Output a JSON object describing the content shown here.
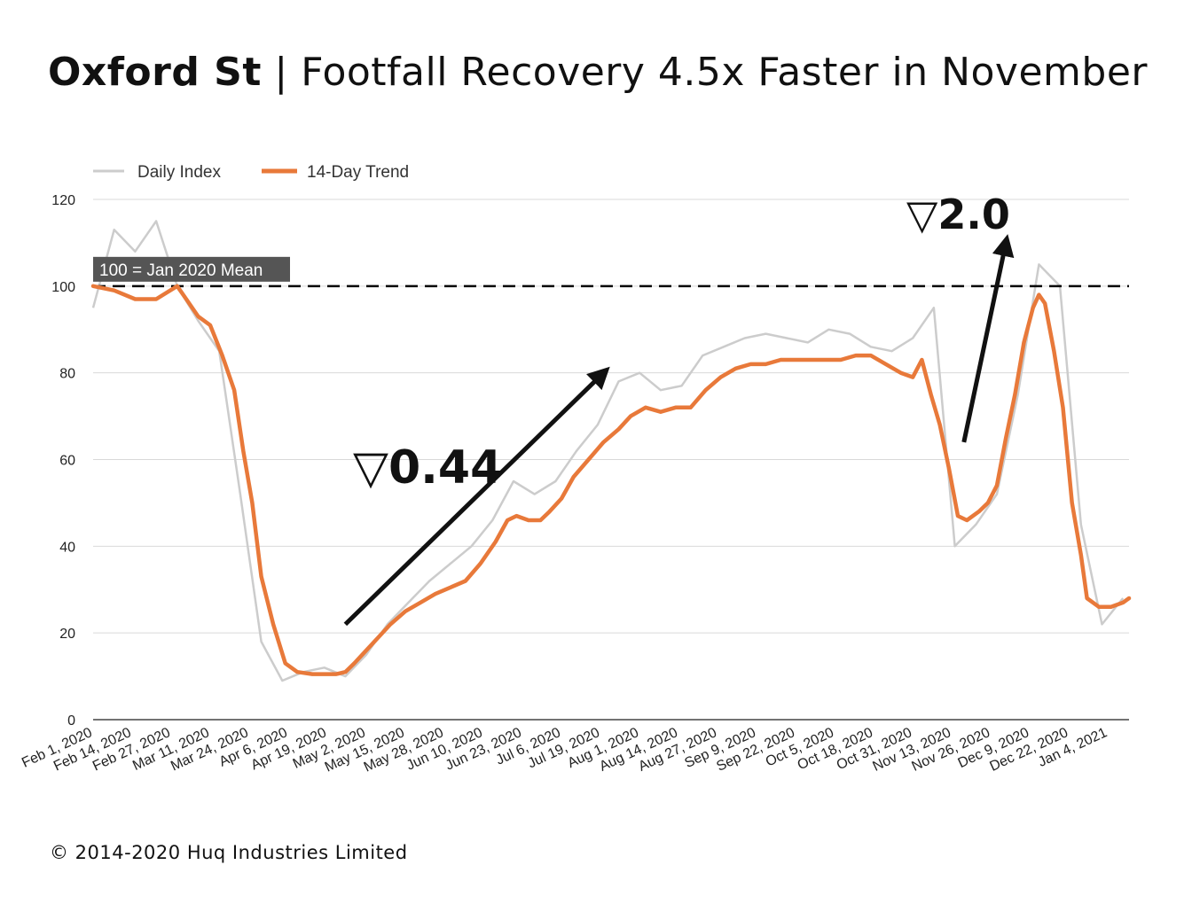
{
  "title_bold": "Oxford St",
  "title_rest": " | Footfall Recovery 4.5x Faster in November",
  "footer": "© 2014-2020 Huq Industries Limited",
  "colors": {
    "daily": "#cccccc",
    "trend": "#e8793a",
    "grid": "#d9d9d9",
    "reference": "#000000",
    "ref_label_bg": "#555555"
  },
  "chart_data": {
    "type": "line",
    "title": "Oxford St | Footfall Recovery 4.5x Faster in November",
    "xlabel": "",
    "ylabel": "",
    "ylim": [
      0,
      120
    ],
    "yticks": [
      0,
      20,
      40,
      60,
      80,
      100,
      120
    ],
    "legend": {
      "position": "top-left",
      "entries": [
        "Daily Index",
        "14-Day Trend"
      ]
    },
    "grid": true,
    "x_start": "Feb 1, 2020",
    "x_end": "Jan 11, 2021",
    "x_tick_labels": [
      "Feb 1, 2020",
      "Feb 14, 2020",
      "Feb 27, 2020",
      "Mar 11, 2020",
      "Mar 24, 2020",
      "Apr 6, 2020",
      "Apr 19, 2020",
      "May 2, 2020",
      "May 15, 2020",
      "May 28, 2020",
      "Jun 10, 2020",
      "Jun 23, 2020",
      "Jul 6, 2020",
      "Jul 19, 2020",
      "Aug 1, 2020",
      "Aug 14, 2020",
      "Aug 27, 2020",
      "Sep 9, 2020",
      "Sep 22, 2020",
      "Oct 5, 2020",
      "Oct 18, 2020",
      "Oct 31, 2020",
      "Nov 13, 2020",
      "Nov 26, 2020",
      "Dec 9, 2020",
      "Dec 22, 2020",
      "Jan 4, 2021"
    ],
    "reference_line": {
      "value": 100,
      "label": "100 = Jan 2020 Mean"
    },
    "annotations": [
      {
        "text": "▽0.44",
        "from": [
          "Apr 25, 2020",
          22
        ],
        "to": [
          "Jul 20, 2020",
          80
        ]
      },
      {
        "text": "▽2.0",
        "from": [
          "Nov 17, 2020",
          64
        ],
        "to": [
          "Dec 1, 2020",
          110
        ]
      }
    ],
    "series": [
      {
        "name": "Daily Index",
        "x": [
          "Feb 1, 2020",
          "Feb 8, 2020",
          "Feb 15, 2020",
          "Feb 22, 2020",
          "Feb 29, 2020",
          "Mar 7, 2020",
          "Mar 14, 2020",
          "Mar 21, 2020",
          "Mar 28, 2020",
          "Apr 4, 2020",
          "Apr 11, 2020",
          "Apr 18, 2020",
          "Apr 25, 2020",
          "May 2, 2020",
          "May 9, 2020",
          "May 16, 2020",
          "May 23, 2020",
          "May 30, 2020",
          "Jun 6, 2020",
          "Jun 13, 2020",
          "Jun 20, 2020",
          "Jun 27, 2020",
          "Jul 4, 2020",
          "Jul 11, 2020",
          "Jul 18, 2020",
          "Jul 25, 2020",
          "Aug 1, 2020",
          "Aug 8, 2020",
          "Aug 15, 2020",
          "Aug 22, 2020",
          "Aug 29, 2020",
          "Sep 5, 2020",
          "Sep 12, 2020",
          "Sep 19, 2020",
          "Sep 26, 2020",
          "Oct 3, 2020",
          "Oct 10, 2020",
          "Oct 17, 2020",
          "Oct 24, 2020",
          "Oct 31, 2020",
          "Nov 7, 2020",
          "Nov 14, 2020",
          "Nov 21, 2020",
          "Nov 28, 2020",
          "Dec 5, 2020",
          "Dec 12, 2020",
          "Dec 19, 2020",
          "Dec 26, 2020",
          "Jan 2, 2021",
          "Jan 9, 2021"
        ],
        "values": [
          95,
          113,
          108,
          115,
          100,
          92,
          85,
          52,
          18,
          9,
          11,
          12,
          10,
          15,
          22,
          27,
          32,
          36,
          40,
          46,
          55,
          52,
          55,
          62,
          68,
          78,
          80,
          76,
          77,
          84,
          86,
          88,
          89,
          88,
          87,
          90,
          89,
          86,
          85,
          88,
          95,
          40,
          45,
          52,
          75,
          105,
          100,
          45,
          22,
          28
        ]
      },
      {
        "name": "14-Day Trend",
        "x": [
          "Feb 1, 2020",
          "Feb 8, 2020",
          "Feb 15, 2020",
          "Feb 22, 2020",
          "Feb 29, 2020",
          "Mar 3, 2020",
          "Mar 7, 2020",
          "Mar 11, 2020",
          "Mar 15, 2020",
          "Mar 19, 2020",
          "Mar 22, 2020",
          "Mar 25, 2020",
          "Mar 28, 2020",
          "Apr 1, 2020",
          "Apr 5, 2020",
          "Apr 9, 2020",
          "Apr 14, 2020",
          "Apr 19, 2020",
          "Apr 22, 2020",
          "Apr 25, 2020",
          "Apr 28, 2020",
          "May 2, 2020",
          "May 6, 2020",
          "May 10, 2020",
          "May 15, 2020",
          "May 20, 2020",
          "May 25, 2020",
          "May 30, 2020",
          "Jun 4, 2020",
          "Jun 9, 2020",
          "Jun 14, 2020",
          "Jun 18, 2020",
          "Jun 21, 2020",
          "Jun 25, 2020",
          "Jun 29, 2020",
          "Jul 2, 2020",
          "Jul 6, 2020",
          "Jul 10, 2020",
          "Jul 15, 2020",
          "Jul 20, 2020",
          "Jul 25, 2020",
          "Jul 29, 2020",
          "Aug 3, 2020",
          "Aug 8, 2020",
          "Aug 13, 2020",
          "Aug 18, 2020",
          "Aug 23, 2020",
          "Aug 28, 2020",
          "Sep 2, 2020",
          "Sep 7, 2020",
          "Sep 12, 2020",
          "Sep 17, 2020",
          "Sep 22, 2020",
          "Sep 27, 2020",
          "Oct 2, 2020",
          "Oct 7, 2020",
          "Oct 12, 2020",
          "Oct 17, 2020",
          "Oct 22, 2020",
          "Oct 27, 2020",
          "Oct 31, 2020",
          "Nov 3, 2020",
          "Nov 6, 2020",
          "Nov 9, 2020",
          "Nov 12, 2020",
          "Nov 15, 2020",
          "Nov 18, 2020",
          "Nov 22, 2020",
          "Nov 25, 2020",
          "Nov 28, 2020",
          "Dec 1, 2020",
          "Dec 4, 2020",
          "Dec 7, 2020",
          "Dec 10, 2020",
          "Dec 12, 2020",
          "Dec 14, 2020",
          "Dec 17, 2020",
          "Dec 20, 2020",
          "Dec 23, 2020",
          "Dec 26, 2020",
          "Dec 28, 2020",
          "Jan 1, 2021",
          "Jan 5, 2021",
          "Jan 9, 2021",
          "Jan 11, 2021"
        ],
        "values": [
          100,
          99,
          97,
          97,
          100,
          97,
          93,
          91,
          84,
          76,
          62,
          50,
          33,
          22,
          13,
          11,
          10.5,
          10.5,
          10.5,
          11,
          13,
          16,
          19,
          22,
          25,
          27,
          29,
          30.5,
          32,
          36,
          41,
          46,
          47,
          46,
          46,
          48,
          51,
          56,
          60,
          64,
          67,
          70,
          72,
          71,
          72,
          72,
          76,
          79,
          81,
          82,
          82,
          83,
          83,
          83,
          83,
          83,
          84,
          84,
          82,
          80,
          79,
          83,
          75,
          68,
          58,
          47,
          46,
          48,
          50,
          54,
          65,
          75,
          87,
          95,
          98,
          96,
          85,
          72,
          50,
          38,
          28,
          26,
          26,
          27,
          28
        ]
      }
    ]
  }
}
